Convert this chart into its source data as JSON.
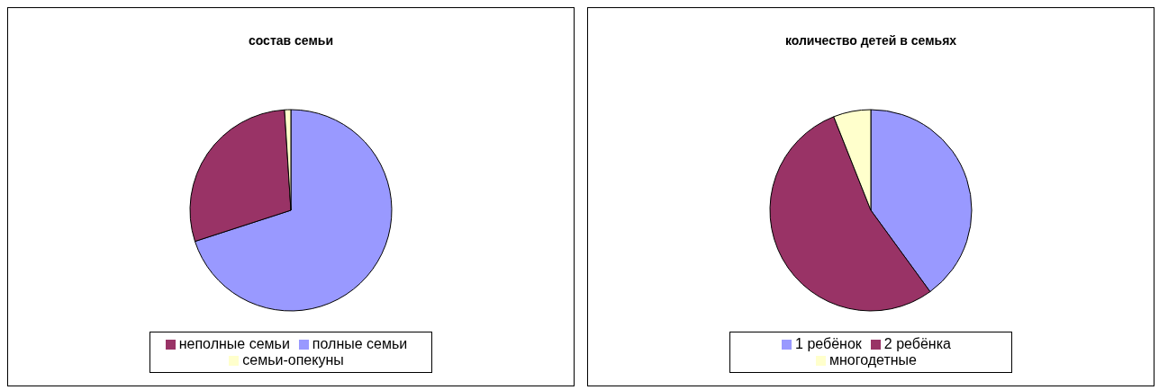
{
  "chart_data": [
    {
      "type": "pie",
      "title": "состав семьи",
      "categories": [
        "полные семьи",
        "неполные семьи",
        "семьи-опекуны"
      ],
      "values": [
        70,
        29,
        1
      ],
      "colors": [
        "#9999ff",
        "#993366",
        "#ffffcc"
      ],
      "legend": "bottom"
    },
    {
      "type": "pie",
      "title": "количество детей в семьях",
      "categories": [
        "1 ребёнок",
        "2 ребёнка",
        "многодетные"
      ],
      "values": [
        40,
        54,
        6
      ],
      "colors": [
        "#9999ff",
        "#993366",
        "#ffffcc"
      ],
      "legend": "bottom"
    }
  ]
}
